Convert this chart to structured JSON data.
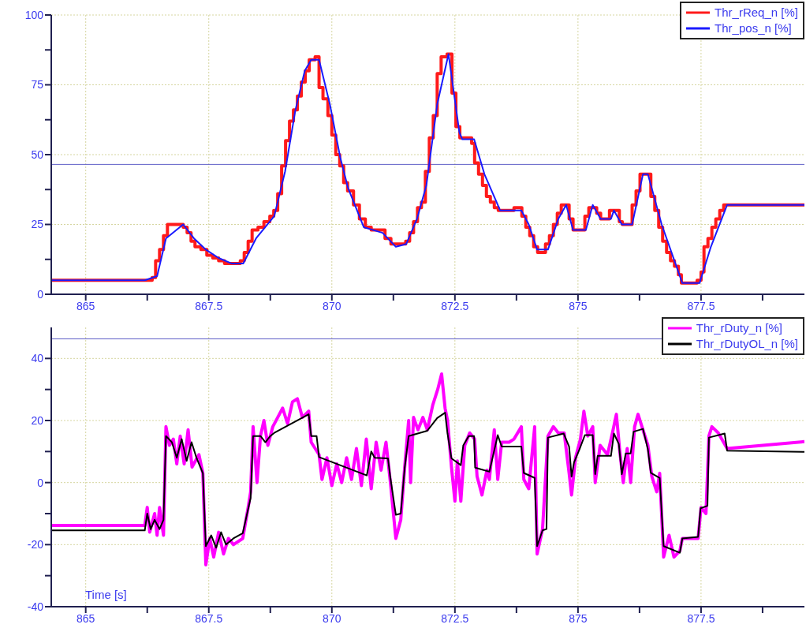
{
  "chart_data": [
    {
      "type": "line",
      "xlim": [
        864.3,
        879.6
      ],
      "ylim": [
        0,
        100
      ],
      "xticks": [
        865,
        {
          "value": 866.25,
          "label": null
        },
        867.5,
        {
          "value": 868.75,
          "label": null
        },
        870,
        {
          "value": 871.25,
          "label": null
        },
        872.5,
        {
          "value": 873.75,
          "label": null
        },
        875,
        {
          "value": 876.25,
          "label": null
        },
        877.5,
        {
          "value": 878.75,
          "label": null
        }
      ],
      "yticks": [
        0,
        {
          "value": 12.5,
          "label": null
        },
        25,
        {
          "value": 37.5,
          "label": null
        },
        50,
        {
          "value": 62.5,
          "label": null
        },
        75,
        {
          "value": 87.5,
          "label": null
        },
        100
      ],
      "grid": true,
      "legend": "top right",
      "ref_lines": [
        {
          "axis": "y",
          "value": 46.5,
          "color": "#6060c8"
        }
      ],
      "series": [
        {
          "name": "Thr_rReq_n [%]",
          "type": "step",
          "color": "#ff1a1a",
          "x": [
            864.3,
            866.25,
            866.35,
            866.42,
            866.5,
            866.58,
            866.66,
            866.9,
            866.98,
            867.06,
            867.14,
            867.22,
            867.34,
            867.46,
            867.58,
            867.7,
            867.82,
            868.14,
            868.22,
            868.3,
            868.38,
            868.5,
            868.62,
            868.74,
            868.82,
            868.9,
            868.98,
            869.06,
            869.14,
            869.22,
            869.3,
            869.38,
            869.46,
            869.54,
            869.66,
            869.74,
            869.82,
            869.92,
            870.0,
            870.08,
            870.16,
            870.24,
            870.32,
            870.44,
            870.56,
            870.68,
            870.8,
            871.0,
            871.08,
            871.2,
            871.5,
            871.58,
            871.66,
            871.74,
            871.82,
            871.9,
            871.98,
            872.06,
            872.14,
            872.22,
            872.34,
            872.44,
            872.52,
            872.6,
            872.84,
            872.9,
            872.98,
            873.06,
            873.14,
            873.22,
            873.3,
            873.38,
            873.7,
            873.78,
            873.86,
            873.94,
            874.02,
            874.1,
            874.18,
            874.34,
            874.42,
            874.5,
            874.58,
            874.66,
            874.74,
            874.82,
            874.9,
            875.14,
            875.22,
            875.3,
            875.38,
            875.46,
            875.64,
            875.76,
            875.84,
            875.9,
            876.1,
            876.18,
            876.26,
            876.4,
            876.48,
            876.56,
            876.64,
            876.72,
            876.8,
            876.88,
            876.96,
            877.04,
            877.1,
            877.42,
            877.5,
            877.56,
            877.64,
            877.72,
            877.8,
            877.88,
            877.96,
            879.6
          ],
          "values": [
            5,
            5,
            6,
            12,
            16,
            21,
            25,
            25,
            24,
            22,
            19,
            17,
            16,
            14,
            13,
            12,
            11,
            12,
            15,
            19,
            23,
            24,
            26,
            28,
            30,
            36,
            46,
            55,
            62,
            66,
            71,
            76,
            80,
            84,
            85,
            74,
            70,
            64,
            57,
            50,
            46,
            40,
            37,
            32,
            27,
            24,
            23,
            23,
            20,
            18,
            19,
            22,
            26,
            31,
            33,
            44,
            56,
            64,
            79,
            85,
            86,
            72,
            60,
            56,
            54,
            47,
            43,
            39,
            35,
            33,
            31,
            30,
            31,
            31,
            28,
            24,
            21,
            17,
            15,
            18,
            21,
            25,
            29,
            32,
            32,
            27,
            23,
            28,
            31,
            31,
            29,
            27,
            30,
            30,
            26,
            25,
            32,
            37,
            43,
            43,
            35,
            30,
            24,
            19,
            15,
            12,
            10,
            7,
            4,
            5,
            8,
            17,
            20,
            24,
            27,
            30,
            32,
            32
          ]
        },
        {
          "name": "Thr_pos_n [%]",
          "type": "line",
          "color": "#1a1aff",
          "x": [
            864.3,
            866.2,
            866.45,
            866.63,
            866.98,
            867.2,
            867.44,
            867.7,
            867.97,
            868.2,
            868.46,
            868.83,
            869.05,
            869.26,
            869.45,
            869.58,
            869.74,
            869.96,
            870.17,
            870.33,
            870.65,
            871.03,
            871.3,
            871.51,
            871.73,
            871.92,
            872.14,
            872.37,
            872.48,
            872.59,
            872.65,
            872.89,
            873.1,
            873.42,
            873.85,
            874.0,
            874.17,
            874.39,
            874.6,
            874.76,
            874.9,
            875.16,
            875.3,
            875.46,
            875.67,
            875.73,
            875.89,
            876.1,
            876.32,
            876.42,
            876.7,
            877.12,
            877.47,
            877.7,
            878.03,
            879.6
          ],
          "values": [
            5,
            5,
            6.5,
            20,
            25,
            20,
            16,
            13,
            11,
            11,
            20,
            28,
            44,
            66,
            80,
            84,
            84,
            68,
            49,
            38,
            24,
            22,
            17,
            18,
            27,
            39,
            68,
            86,
            72,
            58,
            55.5,
            55.5,
            43,
            30,
            30,
            25,
            16,
            16,
            27,
            32,
            23,
            23,
            32,
            27,
            27,
            30,
            25,
            25,
            43,
            43,
            25,
            4,
            4,
            17,
            32,
            32
          ]
        }
      ]
    },
    {
      "type": "line",
      "xlim": [
        864.3,
        879.6
      ],
      "ylim": [
        -40,
        50
      ],
      "xlabel": "Time [s]",
      "xticks": [
        865,
        {
          "value": 866.25,
          "label": null
        },
        867.5,
        {
          "value": 868.75,
          "label": null
        },
        870,
        {
          "value": 871.25,
          "label": null
        },
        872.5,
        {
          "value": 873.75,
          "label": null
        },
        875,
        {
          "value": 876.25,
          "label": null
        },
        877.5,
        {
          "value": 878.75,
          "label": null
        }
      ],
      "yticks": [
        -40,
        {
          "value": -30,
          "label": null
        },
        -20,
        {
          "value": -10,
          "label": null
        },
        0,
        {
          "value": 10,
          "label": null
        },
        20,
        {
          "value": 30,
          "label": null
        },
        40
      ],
      "grid": true,
      "legend": "top right",
      "ref_lines": [
        {
          "axis": "y",
          "value": 46.3,
          "color": "#6060c8"
        }
      ],
      "series": [
        {
          "name": "Thr_rDuty_n [%]",
          "type": "line",
          "color": "#ff00ff",
          "x": [
            864.3,
            866.2,
            866.25,
            866.3,
            866.4,
            866.45,
            866.5,
            866.58,
            866.63,
            866.7,
            866.78,
            866.85,
            866.92,
            867.0,
            867.08,
            867.16,
            867.3,
            867.38,
            867.44,
            867.52,
            867.6,
            867.7,
            867.8,
            867.9,
            868.0,
            868.19,
            868.3,
            868.35,
            868.4,
            868.48,
            868.55,
            868.62,
            868.7,
            868.8,
            868.9,
            869.0,
            869.1,
            869.2,
            869.3,
            869.4,
            869.53,
            869.58,
            869.74,
            869.8,
            869.9,
            870.0,
            870.1,
            870.2,
            870.3,
            870.4,
            870.5,
            870.6,
            870.7,
            870.8,
            870.9,
            871.0,
            871.1,
            871.19,
            871.3,
            871.4,
            871.48,
            871.56,
            871.6,
            871.66,
            871.75,
            871.85,
            871.94,
            872.05,
            872.15,
            872.23,
            872.3,
            872.35,
            872.43,
            872.5,
            872.55,
            872.62,
            872.7,
            872.8,
            872.9,
            872.95,
            873.05,
            873.15,
            873.2,
            873.3,
            873.37,
            873.45,
            873.6,
            873.7,
            873.85,
            873.9,
            874.0,
            874.12,
            874.17,
            874.28,
            874.39,
            874.5,
            874.6,
            874.72,
            874.82,
            874.87,
            874.95,
            875.05,
            875.12,
            875.2,
            875.3,
            875.35,
            875.45,
            875.6,
            875.7,
            875.78,
            875.85,
            875.92,
            876.0,
            876.07,
            876.15,
            876.22,
            876.3,
            876.42,
            876.5,
            876.6,
            876.66,
            876.74,
            876.85,
            876.95,
            877.07,
            877.12,
            877.44,
            877.5,
            877.6,
            877.66,
            877.72,
            877.85,
            878.03,
            879.6
          ],
          "values": [
            -13.8,
            -13.8,
            -8,
            -16,
            -10,
            -17,
            -8,
            -17,
            18,
            12,
            14,
            6,
            15,
            6,
            17,
            5,
            9,
            3,
            -26.5,
            -18,
            -24,
            -16,
            -23,
            -18,
            -20,
            -18,
            -8,
            -3,
            18,
            0,
            15,
            20,
            12,
            18,
            21,
            24,
            19,
            26,
            27,
            21,
            23,
            13,
            9,
            1,
            8,
            -1,
            6,
            0,
            8,
            1,
            11,
            -1,
            14,
            -2,
            13,
            4,
            13,
            0,
            -18,
            -12,
            5,
            20,
            0,
            21,
            17,
            21,
            17,
            25,
            30,
            35,
            24,
            20,
            5,
            -6,
            7,
            -6,
            12,
            16,
            14,
            2,
            -4,
            4,
            1,
            17,
            1,
            13,
            13,
            14,
            18,
            1,
            -2,
            18,
            -23,
            -15,
            15,
            18,
            16,
            16,
            3,
            -4,
            8,
            14,
            23,
            15,
            18,
            0,
            12,
            9,
            16,
            22,
            10,
            0,
            11,
            0,
            18,
            22,
            18,
            12,
            2,
            -3,
            3,
            -24,
            -17,
            -24,
            -22,
            -18,
            -18,
            -8,
            -10,
            15,
            18,
            16,
            11,
            13.2
          ]
        },
        {
          "name": "Thr_rDutyOL_n [%]",
          "type": "line",
          "color": "#000000",
          "x": [
            864.3,
            866.2,
            866.25,
            866.32,
            866.4,
            866.5,
            866.58,
            866.63,
            866.75,
            866.85,
            866.95,
            867.05,
            867.15,
            867.25,
            867.38,
            867.44,
            867.55,
            867.65,
            867.75,
            867.85,
            868.0,
            868.19,
            868.35,
            868.4,
            868.55,
            868.65,
            868.75,
            868.83,
            869.53,
            869.58,
            869.69,
            869.74,
            870.71,
            870.8,
            870.87,
            871.14,
            871.19,
            871.3,
            871.4,
            871.48,
            871.56,
            871.94,
            872.14,
            872.3,
            872.35,
            872.43,
            872.62,
            872.67,
            872.78,
            872.89,
            872.91,
            873.2,
            873.37,
            873.45,
            873.85,
            873.9,
            874.12,
            874.17,
            874.28,
            874.36,
            874.39,
            874.71,
            874.82,
            874.87,
            874.92,
            875.03,
            875.14,
            875.3,
            875.35,
            875.4,
            875.67,
            875.73,
            875.83,
            875.89,
            875.97,
            876.07,
            876.13,
            876.32,
            876.42,
            876.48,
            876.66,
            876.74,
            877.07,
            877.12,
            877.44,
            877.49,
            877.63,
            877.66,
            877.98,
            878.03,
            879.6
          ],
          "values": [
            -15.4,
            -15.4,
            -10,
            -15,
            -12,
            -15,
            -12,
            15,
            13,
            8,
            14,
            7,
            13,
            8,
            3,
            -20.5,
            -17,
            -21,
            -16,
            -20,
            -18,
            -16.3,
            -5,
            15,
            15,
            13,
            15,
            16,
            22,
            15,
            15,
            8.2,
            2.3,
            10,
            8,
            7.8,
            1.5,
            -10.4,
            -10,
            4.8,
            15,
            16.7,
            20.8,
            22.5,
            15.8,
            7.8,
            5.6,
            12,
            15,
            15,
            4.8,
            3.5,
            15.3,
            11.6,
            11.6,
            3.1,
            1.5,
            -20.5,
            -15.4,
            -15,
            14.5,
            15.8,
            11.6,
            1.9,
            6.5,
            10.7,
            15.3,
            15.3,
            2.7,
            8.6,
            8.6,
            15.8,
            12.4,
            2.7,
            9.4,
            9.4,
            16.4,
            17.3,
            10.7,
            3.1,
            1.5,
            -20.5,
            -22.6,
            -18,
            -17.5,
            -8.3,
            -7.5,
            14.5,
            15.8,
            10.3,
            9.9
          ]
        }
      ]
    }
  ]
}
